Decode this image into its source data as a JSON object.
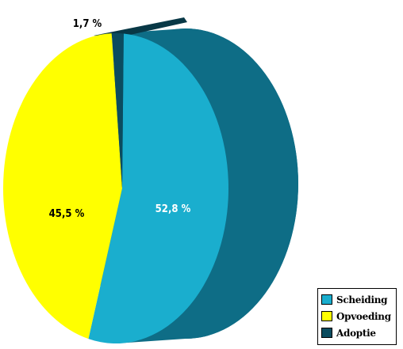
{
  "chart_data": {
    "type": "pie",
    "title": "",
    "legend_position": "bottom-right",
    "slices": [
      {
        "label": "Scheiding",
        "value": 52.8,
        "display": "52,8 %",
        "color": "#1aaece",
        "side_color": "#0e6d86"
      },
      {
        "label": "Opvoeding",
        "value": 45.5,
        "display": "45,5 %",
        "color": "#ffff00",
        "side_color": "#b3b300"
      },
      {
        "label": "Adoptie",
        "value": 1.7,
        "display": "1,7 %",
        "color": "#0b4c5f",
        "side_color": "#083846"
      }
    ]
  }
}
